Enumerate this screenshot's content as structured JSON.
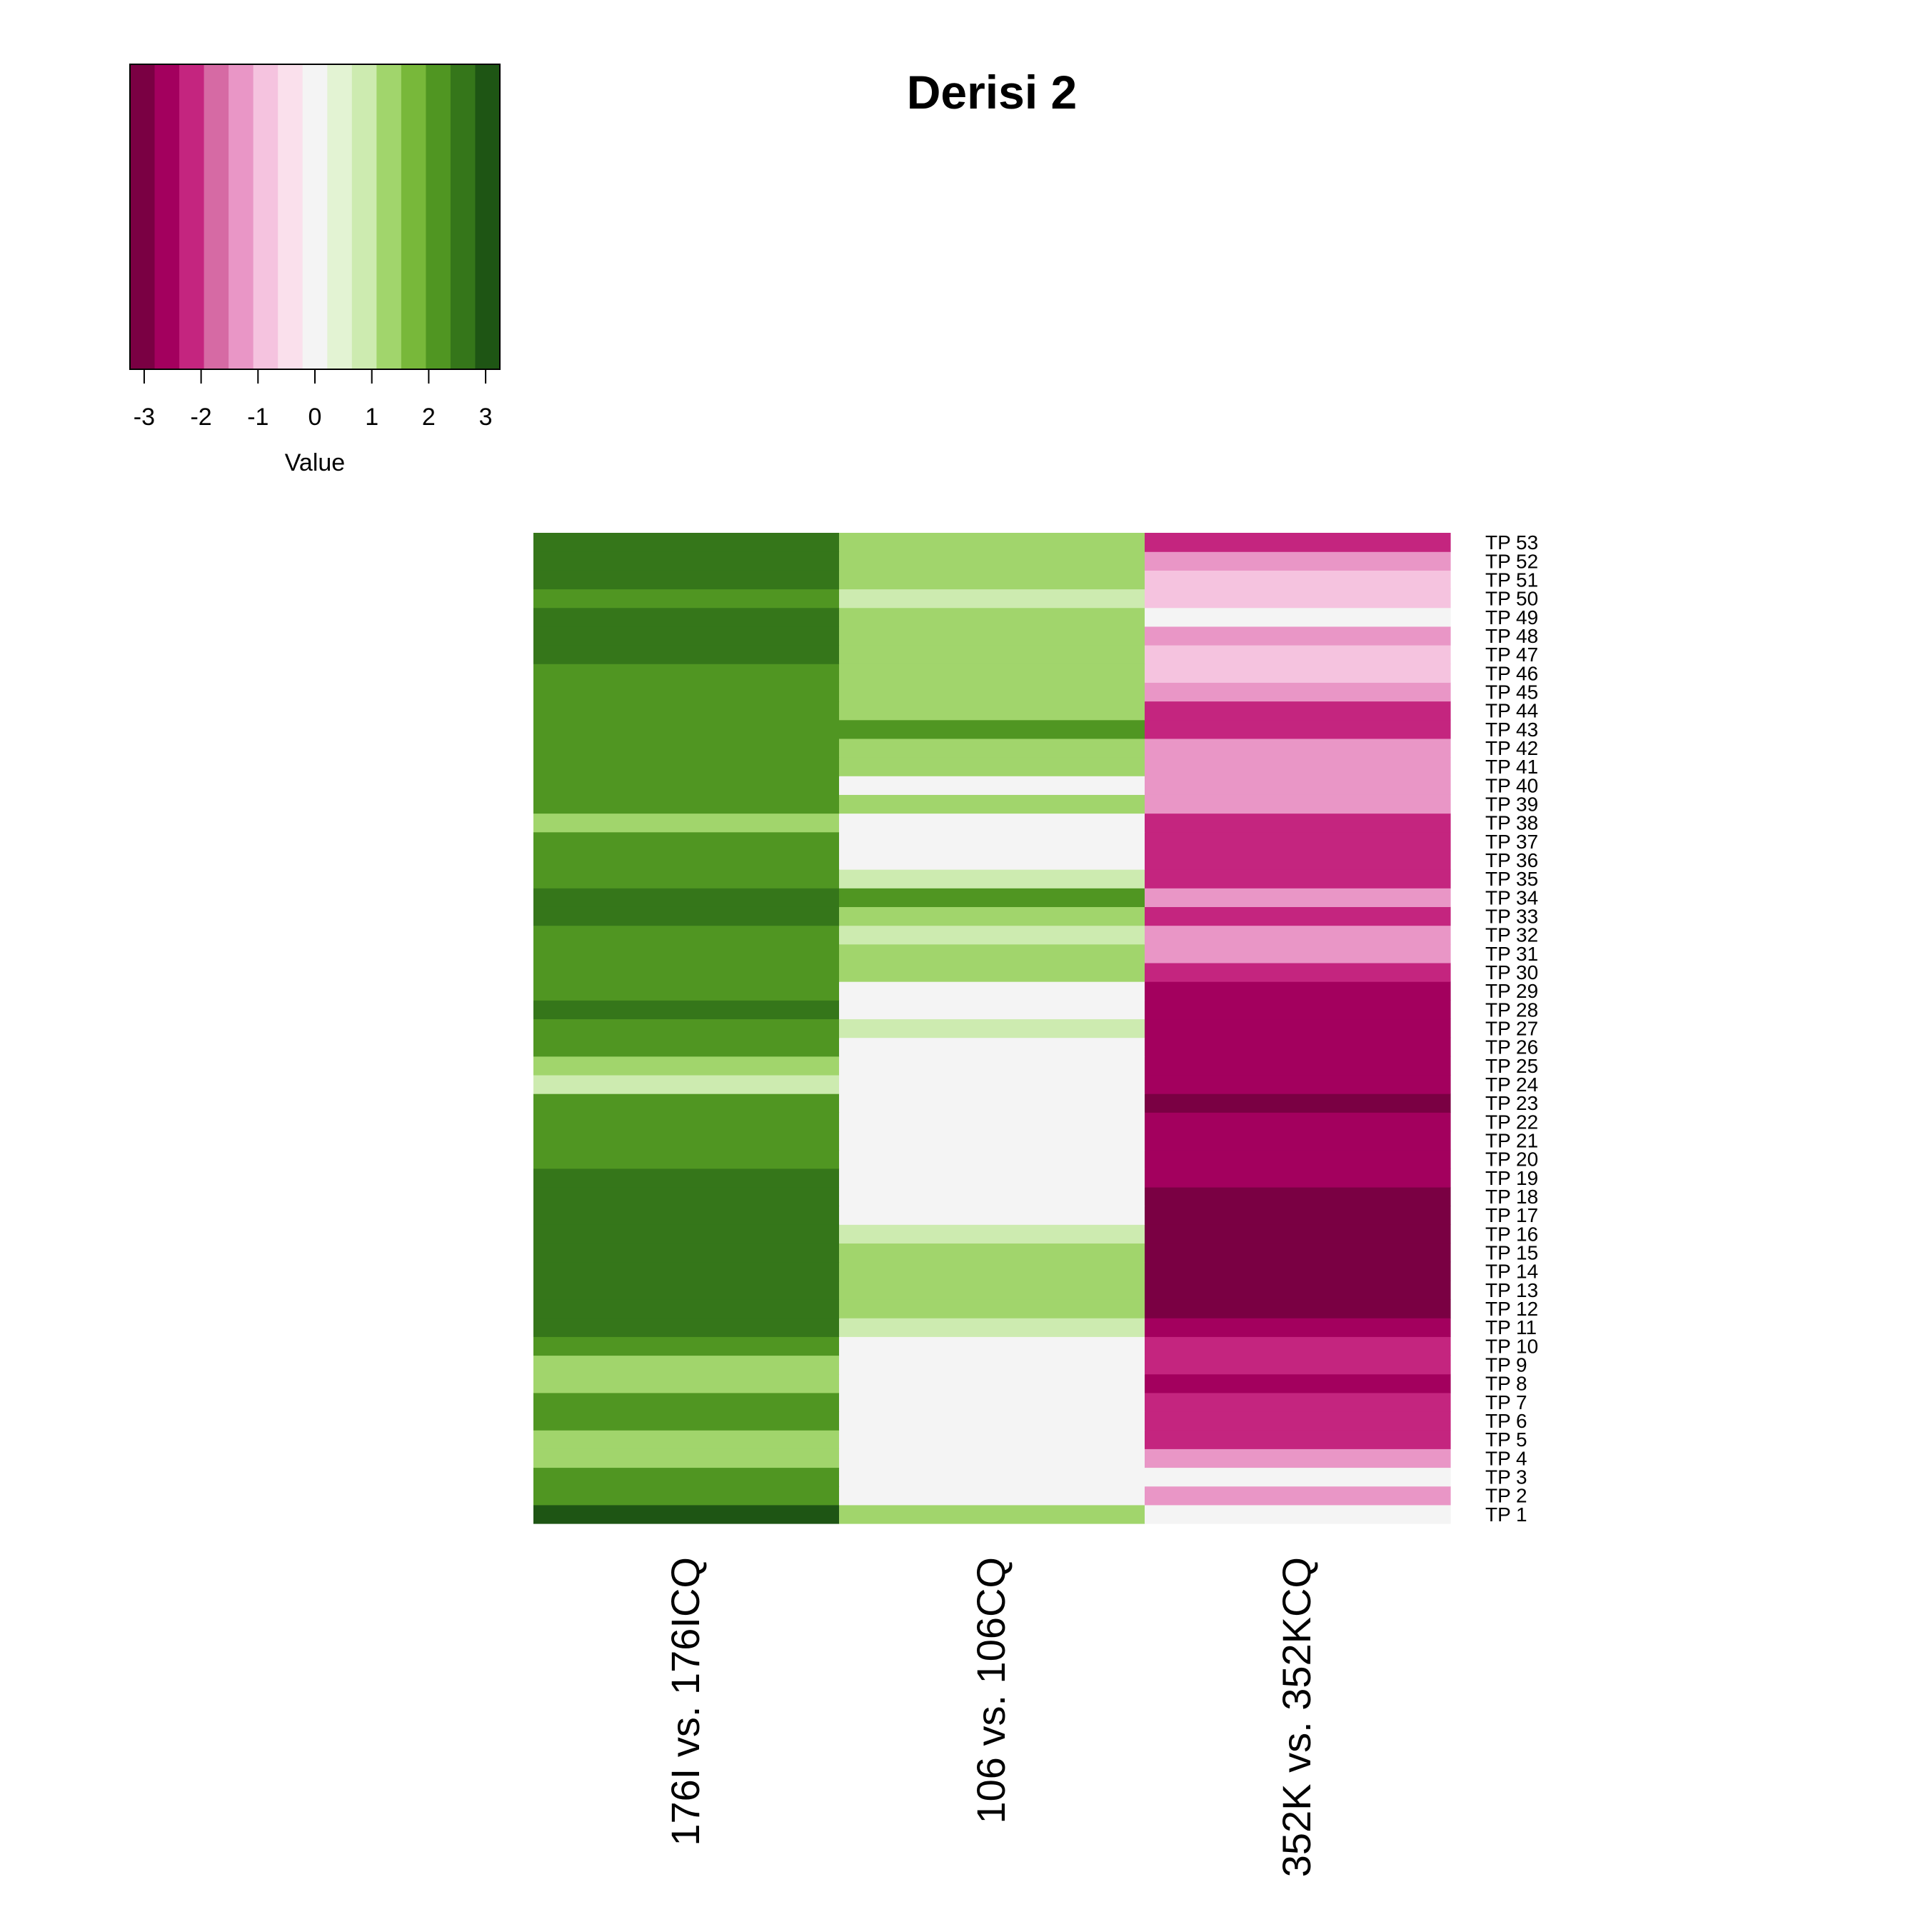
{
  "chart_data": {
    "type": "heatmap",
    "title": "Derisi 2",
    "columns": [
      "176I vs. 176ICQ",
      "106 vs. 106CQ",
      "352K vs. 352KCQ"
    ],
    "rows": [
      "TP 1",
      "TP 2",
      "TP 3",
      "TP 4",
      "TP 5",
      "TP 6",
      "TP 7",
      "TP 8",
      "TP 9",
      "TP 10",
      "TP 11",
      "TP 12",
      "TP 13",
      "TP 14",
      "TP 15",
      "TP 16",
      "TP 17",
      "TP 18",
      "TP 19",
      "TP 20",
      "TP 21",
      "TP 22",
      "TP 23",
      "TP 24",
      "TP 25",
      "TP 26",
      "TP 27",
      "TP 28",
      "TP 29",
      "TP 30",
      "TP 31",
      "TP 32",
      "TP 33",
      "TP 34",
      "TP 35",
      "TP 36",
      "TP 37",
      "TP 38",
      "TP 39",
      "TP 40",
      "TP 41",
      "TP 42",
      "TP 43",
      "TP 44",
      "TP 45",
      "TP 46",
      "TP 47",
      "TP 48",
      "TP 49",
      "TP 50",
      "TP 51",
      "TP 52",
      "TP 53"
    ],
    "values": [
      [
        3.0,
        1.5,
        0.0
      ],
      [
        2.0,
        0.0,
        -1.5
      ],
      [
        2.0,
        0.0,
        0.0
      ],
      [
        1.5,
        0.0,
        -1.5
      ],
      [
        1.5,
        0.0,
        -2.0
      ],
      [
        2.0,
        0.0,
        -2.0
      ],
      [
        2.0,
        0.0,
        -2.0
      ],
      [
        1.5,
        0.0,
        -2.5
      ],
      [
        1.5,
        0.0,
        -2.0
      ],
      [
        2.0,
        0.0,
        -2.0
      ],
      [
        2.5,
        1.0,
        -2.5
      ],
      [
        2.5,
        1.5,
        -3.0
      ],
      [
        2.5,
        1.5,
        -3.0
      ],
      [
        2.5,
        1.5,
        -3.0
      ],
      [
        2.5,
        1.5,
        -3.0
      ],
      [
        2.5,
        1.0,
        -3.0
      ],
      [
        2.5,
        0.0,
        -3.0
      ],
      [
        2.5,
        0.0,
        -3.0
      ],
      [
        2.5,
        0.0,
        -2.5
      ],
      [
        2.0,
        0.0,
        -2.5
      ],
      [
        2.0,
        0.0,
        -2.5
      ],
      [
        2.0,
        0.0,
        -2.5
      ],
      [
        2.0,
        0.0,
        -3.0
      ],
      [
        1.0,
        0.0,
        -2.5
      ],
      [
        1.5,
        0.0,
        -2.5
      ],
      [
        2.0,
        0.0,
        -2.5
      ],
      [
        2.0,
        1.0,
        -2.5
      ],
      [
        2.5,
        0.0,
        -2.5
      ],
      [
        2.0,
        0.0,
        -2.5
      ],
      [
        2.0,
        1.5,
        -2.0
      ],
      [
        2.0,
        1.5,
        -1.5
      ],
      [
        2.0,
        1.0,
        -1.5
      ],
      [
        2.5,
        1.5,
        -2.0
      ],
      [
        2.5,
        2.0,
        -1.5
      ],
      [
        2.0,
        1.0,
        -2.0
      ],
      [
        2.0,
        0.0,
        -2.0
      ],
      [
        2.0,
        0.0,
        -2.0
      ],
      [
        1.5,
        0.0,
        -2.0
      ],
      [
        2.0,
        1.5,
        -1.5
      ],
      [
        2.0,
        0.0,
        -1.5
      ],
      [
        2.0,
        1.5,
        -1.5
      ],
      [
        2.0,
        1.5,
        -1.5
      ],
      [
        2.0,
        2.0,
        -2.0
      ],
      [
        2.0,
        1.5,
        -2.0
      ],
      [
        2.0,
        1.5,
        -1.5
      ],
      [
        2.0,
        1.5,
        -1.0
      ],
      [
        2.5,
        1.5,
        -1.0
      ],
      [
        2.5,
        1.5,
        -1.5
      ],
      [
        2.5,
        1.5,
        0.0
      ],
      [
        2.0,
        1.0,
        -1.0
      ],
      [
        2.5,
        1.5,
        -1.0
      ],
      [
        2.5,
        1.5,
        -1.5
      ],
      [
        2.5,
        1.5,
        -2.0
      ]
    ],
    "color_key": {
      "label": "Value",
      "breaks": [
        -3.25,
        3.25
      ],
      "ticks": [
        "-3",
        "-2",
        "-1",
        "0",
        "1",
        "2",
        "3"
      ],
      "colors": [
        "#7a0043",
        "#a3005e",
        "#c4257f",
        "#d66aa4",
        "#e996c6",
        "#f5c3df",
        "#fae0ec",
        "#f4f4f4",
        "#e3f3d3",
        "#cdebb0",
        "#a1d56c",
        "#78b83a",
        "#509622",
        "#35761a",
        "#1e5514"
      ]
    }
  }
}
